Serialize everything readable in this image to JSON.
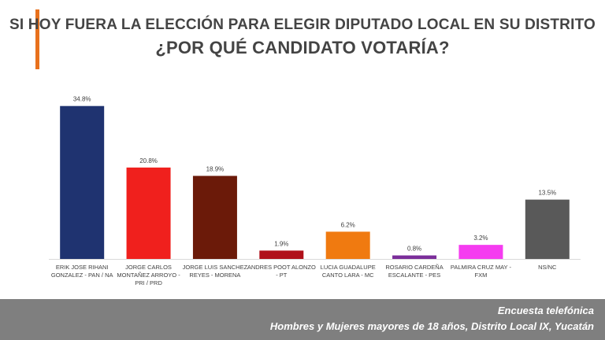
{
  "header": {
    "title_line1": "SI HOY FUERA LA ELECCIÓN PARA ELEGIR DIPUTADO LOCAL EN SU DISTRITO",
    "title_line2": "¿POR QUÉ CANDIDATO VOTARÍA?",
    "accent_color": "#e8711c"
  },
  "chart_data": {
    "type": "bar",
    "title": "",
    "xlabel": "",
    "ylabel": "",
    "ylim": [
      0,
      36
    ],
    "grid": false,
    "legend": "none",
    "categories": [
      [
        "ERIK JOSE RIHANI",
        "GONZALEZ  - PAN / NA"
      ],
      [
        "JORGE CARLOS",
        "MONTAÑEZ ARROYO  -",
        "PRI / PRD"
      ],
      [
        "JORGE LUIS SANCHEZ",
        "REYES  - MORENA"
      ],
      [
        "ANDRES POOT ALONZO",
        "- PT"
      ],
      [
        "LUCIA GUADALUPE",
        "CANTO LARA - MC"
      ],
      [
        "ROSARIO CARDEÑA",
        "ESCALANTE  - PES"
      ],
      [
        "PALMIRA CRUZ MAY  -",
        "FXM"
      ],
      [
        "NS/NC"
      ]
    ],
    "values": [
      34.8,
      20.8,
      18.9,
      1.9,
      6.2,
      0.8,
      3.2,
      13.5
    ],
    "value_labels": [
      "34.8%",
      "20.8%",
      "18.9%",
      "1.9%",
      "6.2%",
      "0.8%",
      "3.2%",
      "13.5%"
    ],
    "colors": [
      "#1f3370",
      "#f0201d",
      "#6b1a09",
      "#b0101a",
      "#f07a10",
      "#7b2e9a",
      "#f53cf0",
      "#595959"
    ]
  },
  "footer": {
    "line1": "Encuesta telefónica",
    "line2": "Hombres y Mujeres mayores de 18 años, Distrito Local IX, Yucatán"
  }
}
